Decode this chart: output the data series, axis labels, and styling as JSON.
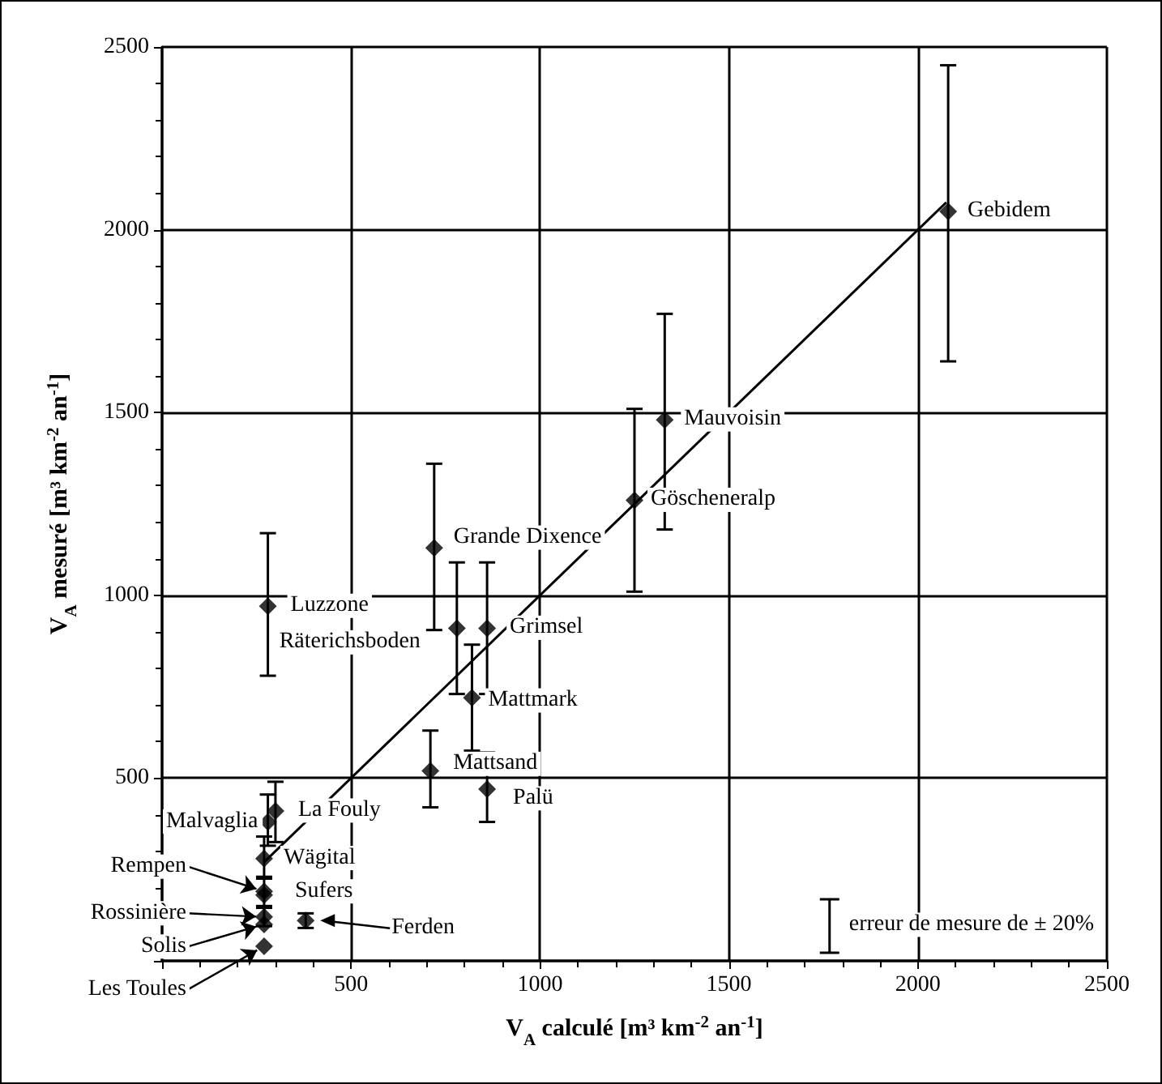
{
  "chart_data": {
    "type": "scatter",
    "xlabel": "V$_{A}$ calculé [m³ km$^{-2}$ an$^{-1}$]",
    "ylabel": "V$_{A}$ mesuré [m³ km$^{-2}$ an$^{-1}$]",
    "xlim": [
      0,
      2500
    ],
    "ylim": [
      0,
      2500
    ],
    "xticks": [
      {
        "value": 0,
        "label": null
      },
      500,
      1000,
      1500,
      2000,
      2500
    ],
    "yticks": [
      {
        "value": 0,
        "label": null
      },
      500,
      1000,
      1500,
      2000,
      2500
    ],
    "grid": true,
    "series": [
      {
        "color": "#000000",
        "marker": "diamond",
        "x": [
          2080,
          1330,
          1250,
          720,
          280,
          780,
          860,
          820,
          710,
          860,
          300,
          280,
          270,
          270,
          270,
          270,
          270,
          270,
          380
        ],
        "values": [
          2050,
          1480,
          1260,
          1130,
          970,
          910,
          910,
          720,
          520,
          470,
          410,
          380,
          280,
          190,
          180,
          120,
          100,
          40,
          110
        ],
        "errors": [
          [
            1640,
            2450
          ],
          [
            1180,
            1770
          ],
          [
            1010,
            1510
          ],
          [
            905,
            1360
          ],
          [
            780,
            1170
          ],
          [
            730,
            1090
          ],
          [
            730,
            1090
          ],
          [
            575,
            865
          ],
          [
            420,
            630
          ],
          [
            380,
            570
          ],
          [
            325,
            490
          ],
          [
            315,
            455
          ],
          [
            225,
            340
          ],
          [
            150,
            230
          ],
          null,
          [
            95,
            145
          ],
          null,
          null,
          [
            90,
            130
          ]
        ]
      },
      {
        "type": "line",
        "color": "#000000",
        "x": [
          270,
          2075
        ],
        "values": [
          270,
          2075
        ]
      }
    ],
    "annotations": [
      {
        "text": "Gebidem",
        "x": 2080,
        "y": 2050
      },
      {
        "text": "Mauvoisin",
        "x": 1330,
        "y": 1480
      },
      {
        "text": "Göscheneralp",
        "x": 1250,
        "y": 1260
      },
      {
        "text": "Grande Dixence",
        "x": 720,
        "y": 1130
      },
      {
        "text": "Luzzone",
        "x": 280,
        "y": 970
      },
      {
        "text": "Räterichsboden",
        "x": 780,
        "y": 910
      },
      {
        "text": "Grimsel",
        "x": 860,
        "y": 910
      },
      {
        "text": "Mattmark",
        "x": 820,
        "y": 720
      },
      {
        "text": "Mattsand",
        "x": 710,
        "y": 520
      },
      {
        "text": "Palü",
        "x": 860,
        "y": 470
      },
      {
        "text": "La Fouly",
        "x": 300,
        "y": 410
      },
      {
        "text": "Malvaglia",
        "x": 280,
        "y": 380
      },
      {
        "text": "Wägital",
        "x": 270,
        "y": 280
      },
      {
        "text": "Rempen",
        "x": 270,
        "y": 190
      },
      {
        "text": "Sufers",
        "x": 270,
        "y": 180
      },
      {
        "text": "Rossinière",
        "x": 270,
        "y": 120
      },
      {
        "text": "Solis",
        "x": 270,
        "y": 100
      },
      {
        "text": "Les Toules",
        "x": 270,
        "y": 40
      },
      "Ferden",
      "erreur de mesure de ± 20%"
    ]
  }
}
